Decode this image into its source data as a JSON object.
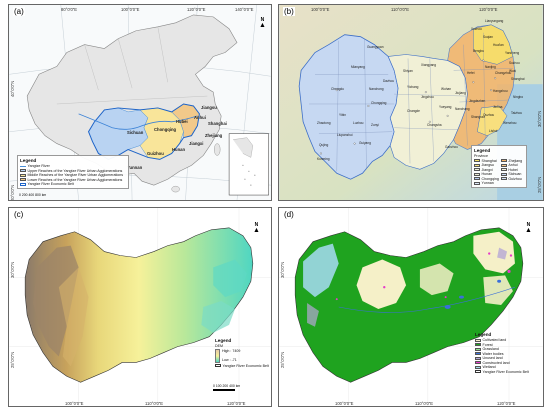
{
  "panels": {
    "a": {
      "label": "(a)",
      "top_ticks": [
        "80°0'0\"E",
        "100°0'0\"E",
        "120°0'0\"E",
        "140°0'0\"E"
      ],
      "left_ticks": [
        "40°0'0\"N",
        "20°0'0\"N"
      ],
      "right_ticks": [
        "40°0'0\"N",
        "30°0'0\"N",
        "20°0'0\"N"
      ],
      "north": "N",
      "provinces": [
        "Sichuan",
        "Chongqing",
        "Hubei",
        "Anhui",
        "Jiangsu",
        "Shanghai",
        "Zhejiang",
        "Hunan",
        "Jiangxi",
        "Guizhou",
        "Yunnan"
      ],
      "legend": {
        "title": "Legend",
        "items": [
          "Yangtze River",
          "Upper Reaches of the Yangtze River Urban Agglomerations",
          "Middle Reaches of the Yangtze River Urban Agglomerations",
          "Lower Reaches of the Yangtze River Urban Agglomerations",
          "Yangtze River Economic Belt"
        ]
      },
      "scale": {
        "labels": [
          "0",
          "200",
          "400",
          "800"
        ],
        "unit": "km"
      }
    },
    "b": {
      "label": "(b)",
      "top_ticks": [
        "100°0'0\"E",
        "110°0'0\"E",
        "120°0'0\"E"
      ],
      "right_ticks": [
        "30°0'0\"N",
        "25°0'0\"N"
      ],
      "cities": [
        "Lianyungang",
        "Xuzhou",
        "Suqian",
        "Huai'an",
        "Yancheng",
        "Bengbu",
        "Nanjing",
        "Hefei",
        "Wuhan",
        "Chengdu",
        "Chongqing",
        "Guiyang",
        "Kunming",
        "Changsha",
        "Nanchang",
        "Shanghai",
        "Hangzhou",
        "Ningbo",
        "Wenzhou",
        "Guangyuan",
        "Mianyang",
        "Xiangyang",
        "Shiyan",
        "Yichang",
        "Jingzhou",
        "Yueyang",
        "Changde",
        "Zunyi",
        "Liupanshui",
        "Qujing",
        "Zhaotong",
        "Yibin",
        "Luzhou",
        "Dazhou",
        "Nanchong",
        "Ganzhou",
        "Jiujiang",
        "Jingdezhen",
        "Shangrao",
        "Lishui",
        "Quzhou",
        "Jinhua",
        "Taizhou",
        "Wuxi",
        "Suzhou",
        "Changzhou"
      ],
      "legend": {
        "title": "Legend",
        "subtitle": "Province",
        "items": [
          "Shanghai",
          "Zhejiang",
          "Jiangsu",
          "Anhui",
          "Jiangxi",
          "Hubei",
          "Hunan",
          "Sichuan",
          "Chongqing",
          "Guizhou",
          "Yunnan"
        ]
      }
    },
    "c": {
      "label": "(c)",
      "left_ticks": [
        "30°0'0\"N",
        "25°0'0\"N"
      ],
      "bottom_ticks": [
        "100°0'0\"E",
        "110°0'0\"E",
        "120°0'0\"E"
      ],
      "legend": {
        "title": "Legend",
        "dem_label": "DEM",
        "high": "High : 7409",
        "low": "Low : -71",
        "boundary": "Yangtze River Economic Belt"
      },
      "scale": {
        "labels": [
          "0",
          "100",
          "200",
          "400"
        ],
        "unit": "km"
      },
      "north": "N"
    },
    "d": {
      "label": "(d)",
      "left_ticks": [
        "30°0'0\"N",
        "25°0'0\"N"
      ],
      "bottom_ticks": [
        "100°0'0\"E",
        "110°0'0\"E",
        "120°0'0\"E"
      ],
      "legend": {
        "title": "Legend",
        "items": [
          {
            "name": "Cultivated land",
            "color": "#f5f0c8"
          },
          {
            "name": "Forest",
            "color": "#1fa31f"
          },
          {
            "name": "Grassland",
            "color": "#8fe08f"
          },
          {
            "name": "Water bodies",
            "color": "#3a6fd9"
          },
          {
            "name": "Unused land",
            "color": "#b5a7d6"
          },
          {
            "name": "Constructed land",
            "color": "#e63cc9"
          },
          {
            "name": "Wetland",
            "color": "#9fd8e8"
          },
          {
            "name": "Yangtze River Economic Belt",
            "color": "#ffffff"
          }
        ]
      },
      "north": "N"
    }
  },
  "colors": {
    "upper": "#b9d3f2",
    "middle": "#f9e59a",
    "lower": "#f2c98a",
    "river": "#3b82d6",
    "china": "#e9e9e9"
  }
}
